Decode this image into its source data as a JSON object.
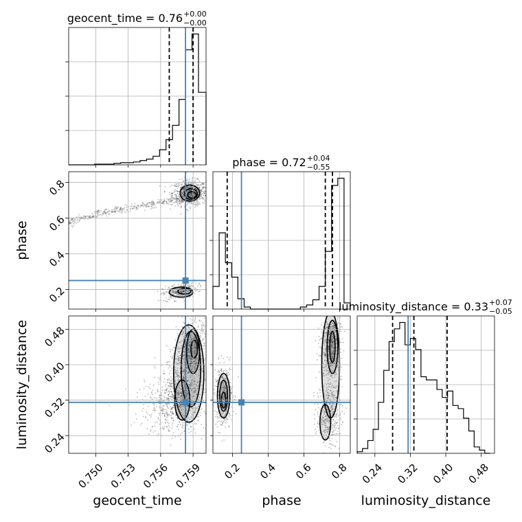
{
  "chart_data": {
    "type": "corner",
    "parameters": [
      "geocent_time",
      "phase",
      "luminosity_distance"
    ],
    "truth_color": "#4682b4",
    "truths": {
      "geocent_time": 0.7583,
      "phase": 0.25,
      "luminosity_distance": 0.315
    },
    "titles": [
      {
        "param": "geocent_time",
        "text": "geocent_time = 0.76",
        "sup": "+0.00",
        "sub": "−0.00"
      },
      {
        "param": "phase",
        "text": "phase = 0.72",
        "sup": "+0.04",
        "sub": "−0.55"
      },
      {
        "param": "luminosity_distance",
        "text": "luminosity_distance = 0.33",
        "sup": "+0.07",
        "sub": "−0.05"
      }
    ],
    "axes": {
      "geocent_time": {
        "range": [
          0.7475,
          0.7602
        ],
        "ticks": [
          0.75,
          0.753,
          0.756,
          0.759
        ],
        "tick_labels": [
          "0.750",
          "0.753",
          "0.756",
          "0.759"
        ]
      },
      "phase": {
        "range": [
          0.09,
          0.86
        ],
        "ticks": [
          0.2,
          0.4,
          0.6,
          0.8
        ],
        "tick_labels": [
          "0.2",
          "0.4",
          "0.6",
          "0.8"
        ]
      },
      "luminosity_distance": {
        "range": [
          0.2,
          0.51
        ],
        "ticks": [
          0.24,
          0.32,
          0.4,
          0.48
        ],
        "tick_labels": [
          "0.24",
          "0.32",
          "0.40",
          "0.48"
        ]
      }
    },
    "histograms": {
      "geocent_time": {
        "edges": [
          0.7475,
          0.7481,
          0.7487,
          0.7493,
          0.7499,
          0.7505,
          0.7511,
          0.7517,
          0.7523,
          0.7529,
          0.7535,
          0.7541,
          0.7547,
          0.7553,
          0.7559,
          0.7565,
          0.7571,
          0.7577,
          0.7583,
          0.7589,
          0.7595,
          0.7602
        ],
        "counts": [
          0,
          0,
          0,
          0,
          1,
          1,
          1,
          2,
          3,
          3,
          4,
          6,
          8,
          12,
          21,
          35,
          55,
          91,
          160,
          182,
          101
        ],
        "quantiles": [
          0.7568,
          0.759
        ],
        "median": 0.7583
      },
      "phase": {
        "edges": [
          0.09,
          0.125,
          0.16,
          0.195,
          0.23,
          0.265,
          0.3,
          0.335,
          0.37,
          0.405,
          0.44,
          0.475,
          0.51,
          0.545,
          0.58,
          0.615,
          0.65,
          0.685,
          0.72,
          0.755,
          0.79,
          0.825,
          0.86
        ],
        "counts": [
          22,
          74,
          45,
          31,
          10,
          2,
          0,
          0,
          0,
          0,
          0,
          0,
          0,
          0,
          2,
          4,
          9,
          22,
          56,
          120,
          127,
          6
        ],
        "quantiles": [
          0.17,
          0.72,
          0.76
        ],
        "median": 0.72
      },
      "luminosity_distance": {
        "edges": [
          0.2,
          0.212,
          0.224,
          0.236,
          0.248,
          0.26,
          0.272,
          0.284,
          0.296,
          0.308,
          0.32,
          0.332,
          0.344,
          0.356,
          0.368,
          0.38,
          0.392,
          0.404,
          0.416,
          0.428,
          0.44,
          0.452,
          0.464,
          0.476,
          0.488,
          0.5
        ],
        "counts": [
          1,
          3,
          8,
          15,
          32,
          52,
          70,
          78,
          82,
          68,
          72,
          65,
          48,
          46,
          46,
          40,
          35,
          39,
          30,
          28,
          22,
          14,
          4,
          2,
          0
        ],
        "quantiles": [
          0.28,
          0.328,
          0.403
        ],
        "median": 0.328
      }
    },
    "grid": true,
    "scatter_color": "#555555",
    "contour_levels": 4
  }
}
